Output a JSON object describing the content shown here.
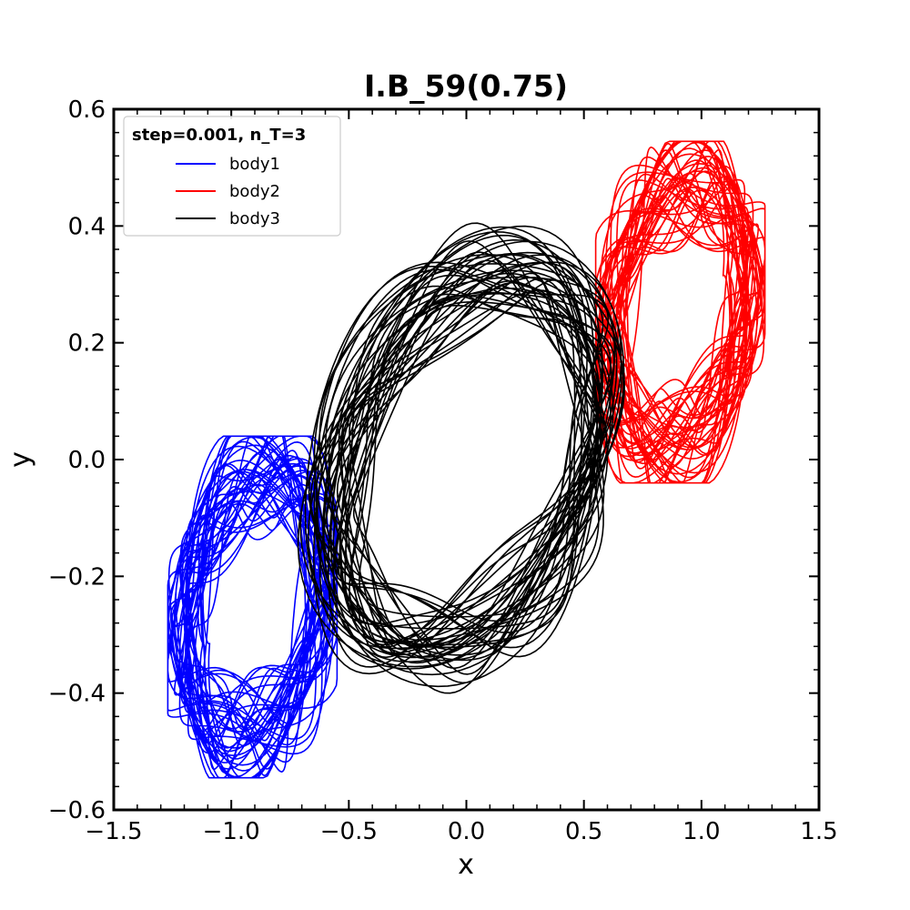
{
  "chart_data": {
    "type": "line",
    "title": "I.B_59(0.75)",
    "xlabel": "x",
    "ylabel": "y",
    "xlim": [
      -1.5,
      1.5
    ],
    "ylim": [
      -0.6,
      0.6
    ],
    "x_ticks": [
      -1.5,
      -1.0,
      -0.5,
      0.0,
      0.5,
      1.0,
      1.5
    ],
    "x_tick_labels": [
      "−1.5",
      "−1.0",
      "−0.5",
      "0.0",
      "0.5",
      "1.0",
      "1.5"
    ],
    "y_ticks": [
      -0.6,
      -0.4,
      -0.2,
      0.0,
      0.2,
      0.4,
      0.6
    ],
    "y_tick_labels": [
      "−0.6",
      "−0.4",
      "−0.2",
      "0.0",
      "0.2",
      "0.4",
      "0.6"
    ],
    "grid": false,
    "legend": {
      "title": "step=0.001, n_T=3",
      "placement": "top-left"
    },
    "series": [
      {
        "name": "body1",
        "color": "#0000ff",
        "envelope": {
          "x_range": [
            -1.27,
            -0.55
          ],
          "y_range": [
            -0.545,
            0.04
          ],
          "center": [
            -0.9,
            -0.25
          ]
        }
      },
      {
        "name": "body2",
        "color": "#ff0000",
        "envelope": {
          "x_range": [
            0.55,
            1.27
          ],
          "y_range": [
            -0.04,
            0.545
          ],
          "center": [
            0.9,
            0.25
          ]
        }
      },
      {
        "name": "body3",
        "color": "#000000",
        "envelope": {
          "x_range": [
            -0.78,
            0.78
          ],
          "y_range": [
            -0.43,
            0.43
          ],
          "center": [
            0.0,
            0.0
          ],
          "tilt_deg": 35
        }
      }
    ]
  }
}
